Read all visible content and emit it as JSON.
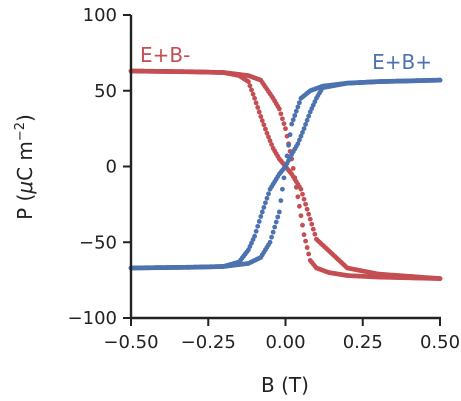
{
  "chart_data": {
    "type": "scatter",
    "title": "",
    "xlabel": "B (T)",
    "ylabel_main": "P (",
    "ylabel_mu": "μ",
    "ylabel_unit": "C m",
    "ylabel_exp": "−2",
    "ylabel_close": ")",
    "xlim": [
      -0.5,
      0.5
    ],
    "ylim": [
      -100,
      100
    ],
    "xticks": [
      -0.5,
      -0.25,
      0,
      0.25,
      0.5
    ],
    "xtick_labels": [
      "−0.50",
      "−0.25",
      "0.00",
      "0.25",
      "0.50"
    ],
    "yticks": [
      -100,
      -50,
      0,
      50,
      100
    ],
    "ytick_labels": [
      "−100",
      "−50",
      "0",
      "50",
      "100"
    ],
    "grid": false,
    "series": [
      {
        "name": "E+B-",
        "color": "#c44e52",
        "label_position": "top-left",
        "branches": [
          {
            "x": [
              -0.5,
              -0.3,
              -0.2,
              -0.15,
              -0.12,
              -0.1,
              -0.08,
              -0.06,
              -0.04,
              -0.02,
              0.0,
              0.02,
              0.05,
              0.1,
              0.2,
              0.3,
              0.5
            ],
            "y": [
              63,
              62.5,
              62,
              60,
              56,
              45,
              33,
              22,
              12,
              5,
              0,
              -5,
              -15,
              -48,
              -67,
              -71,
              -74
            ]
          },
          {
            "x": [
              -0.5,
              -0.3,
              -0.2,
              -0.12,
              -0.08,
              -0.04,
              -0.02,
              0.0,
              0.02,
              0.04,
              0.06,
              0.08,
              0.1,
              0.14,
              0.2,
              0.3,
              0.5
            ],
            "y": [
              63,
              62.5,
              62,
              60,
              57,
              45,
              38,
              25,
              5,
              -20,
              -45,
              -62,
              -67,
              -70,
              -72,
              -73,
              -74
            ]
          }
        ]
      },
      {
        "name": "E+B+",
        "color": "#4c72b0",
        "label_position": "top-right",
        "branches": [
          {
            "x": [
              -0.5,
              -0.3,
              -0.2,
              -0.15,
              -0.12,
              -0.1,
              -0.08,
              -0.05,
              -0.02,
              0.0,
              0.02,
              0.04,
              0.06,
              0.08,
              0.1,
              0.12,
              0.2,
              0.3,
              0.5
            ],
            "y": [
              -67,
              -66.5,
              -66,
              -63,
              -55,
              -46,
              -33,
              -15,
              -5,
              0,
              8,
              15,
              25,
              36,
              45,
              52,
              55,
              56,
              57
            ]
          },
          {
            "x": [
              -0.5,
              -0.3,
              -0.2,
              -0.12,
              -0.08,
              -0.05,
              -0.02,
              0.0,
              0.02,
              0.05,
              0.08,
              0.12,
              0.2,
              0.3,
              0.5
            ],
            "y": [
              -67,
              -66.5,
              -66,
              -64,
              -60,
              -50,
              -30,
              0,
              28,
              45,
              50,
              53,
              55,
              56,
              57
            ]
          }
        ]
      }
    ]
  }
}
